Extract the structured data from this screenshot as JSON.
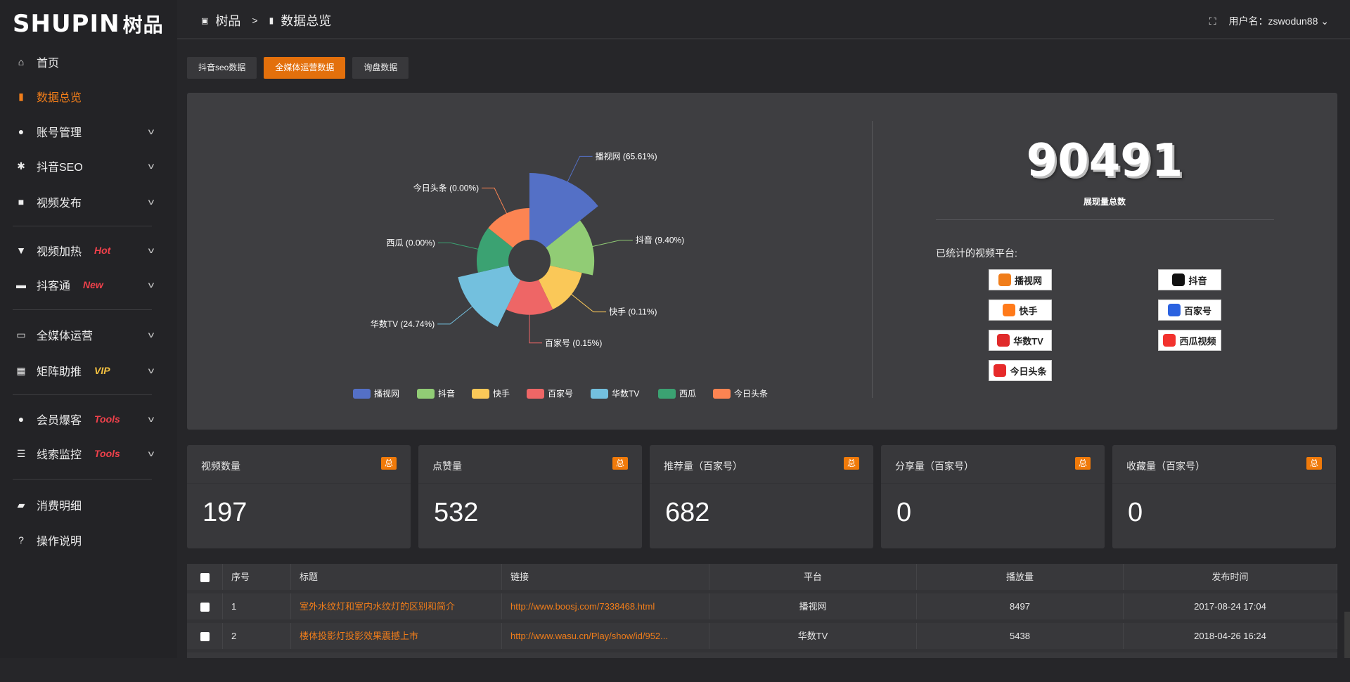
{
  "logo": {
    "text": "SHUPIN",
    "cn": "树品"
  },
  "sidebar": {
    "items": [
      {
        "label": "首页",
        "icon": "home-icon"
      },
      {
        "label": "数据总览",
        "icon": "bar-chart-icon",
        "active": true
      },
      {
        "label": "账号管理",
        "icon": "user-icon"
      },
      {
        "label": "抖音SEO",
        "icon": "gear-icon"
      },
      {
        "label": "视频发布",
        "icon": "camera-icon"
      },
      {
        "label": "视频加热",
        "icon": "brush-icon",
        "tag": "Hot",
        "tag_color": "#f0414b"
      },
      {
        "label": "抖客通",
        "icon": "chat-icon",
        "tag": "New",
        "tag_color": "#f0414b"
      },
      {
        "label": "全媒体运营",
        "icon": "monitor-icon"
      },
      {
        "label": "矩阵助推",
        "icon": "grid-icon",
        "tag": "VIP",
        "tag_color": "#f5c140"
      },
      {
        "label": "会员爆客",
        "icon": "user-icon",
        "tag": "Tools",
        "tag_color": "#f0414b"
      },
      {
        "label": "线索监控",
        "icon": "sliders-icon",
        "tag": "Tools",
        "tag_color": "#f0414b"
      },
      {
        "label": "消费明细",
        "icon": "wallet-icon"
      },
      {
        "label": "操作说明",
        "icon": "help-icon"
      }
    ]
  },
  "header": {
    "breadcrumb": [
      "树品",
      ">",
      "数据总览"
    ],
    "username_label": "用户名：",
    "username": "zswodun88"
  },
  "tabs": [
    {
      "label": "抖音seo数据"
    },
    {
      "label": "全媒体运营数据",
      "active": true
    },
    {
      "label": "询盘数据"
    }
  ],
  "chart_data": {
    "type": "pie",
    "variant": "rose",
    "categories": [
      "播视网",
      "抖音",
      "快手",
      "百家号",
      "华数TV",
      "西瓜",
      "今日头条"
    ],
    "values": [
      65.61,
      9.4,
      0.11,
      0.15,
      24.74,
      0.0,
      0.0
    ],
    "labels": [
      "播视网 (65.61%)",
      "抖音 (9.40%)",
      "快手 (0.11%)",
      "百家号 (0.15%)",
      "华数TV (24.74%)",
      "西瓜 (0.00%)",
      "今日头条 (0.00%)"
    ],
    "colors": [
      "#5470c6",
      "#91cc75",
      "#fac858",
      "#ee6666",
      "#73c0de",
      "#3ba272",
      "#fc8452"
    ],
    "legend": "bottom"
  },
  "summary": {
    "total": "90491",
    "total_label": "展现量总数",
    "platforms_label": "已统计的视频平台:",
    "platforms": [
      {
        "name": "播视网",
        "color": "#f07d1a"
      },
      {
        "name": "抖音",
        "color": "#111"
      },
      {
        "name": "快手",
        "color": "#ff7a1a"
      },
      {
        "name": "百家号",
        "color": "#2b62e0"
      },
      {
        "name": "华数TV",
        "color": "#e02a2a"
      },
      {
        "name": "西瓜视频",
        "color": "#f2322e"
      },
      {
        "name": "今日头条",
        "color": "#e62a2a"
      }
    ]
  },
  "cards": [
    {
      "title": "视频数量",
      "badge": "总",
      "value": "197"
    },
    {
      "title": "点赞量",
      "badge": "总",
      "value": "532"
    },
    {
      "title": "推荐量（百家号）",
      "badge": "总",
      "value": "682"
    },
    {
      "title": "分享量（百家号）",
      "badge": "总",
      "value": "0"
    },
    {
      "title": "收藏量（百家号）",
      "badge": "总",
      "value": "0"
    }
  ],
  "table": {
    "headers": [
      "序号",
      "标题",
      "链接",
      "平台",
      "播放量",
      "发布时间"
    ],
    "rows": [
      [
        "1",
        "室外水纹灯和室内水纹灯的区别和简介",
        "http://www.boosj.com/7338468.html",
        "播视网",
        "8497",
        "2017-08-24 17:04"
      ],
      [
        "2",
        "楼体投影灯投影效果震撼上市",
        "http://www.wasu.cn/Play/show/id/952...",
        "华数TV",
        "5438",
        "2018-04-26 16:24"
      ]
    ]
  }
}
